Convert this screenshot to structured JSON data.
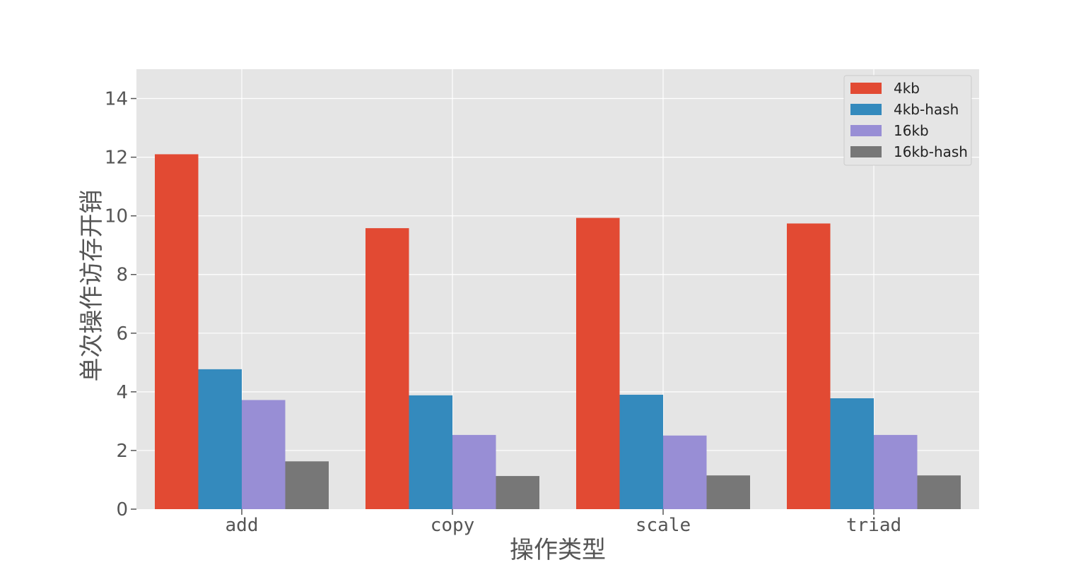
{
  "chart_data": {
    "type": "bar",
    "xlabel": "操作类型",
    "ylabel": "单次操作访存开销",
    "categories": [
      "add",
      "copy",
      "scale",
      "triad"
    ],
    "series": [
      {
        "name": "4kb",
        "values": [
          12.1,
          9.58,
          9.93,
          9.74
        ],
        "color": "#E24A33"
      },
      {
        "name": "4kb-hash",
        "values": [
          4.77,
          3.88,
          3.9,
          3.78
        ],
        "color": "#348ABD"
      },
      {
        "name": "16kb",
        "values": [
          3.72,
          2.53,
          2.51,
          2.53
        ],
        "color": "#988ED5"
      },
      {
        "name": "16kb-hash",
        "values": [
          1.63,
          1.13,
          1.15,
          1.15
        ],
        "color": "#777777"
      }
    ],
    "ylim": [
      0,
      15
    ],
    "yticks": [
      0,
      2,
      4,
      6,
      8,
      10,
      12,
      14
    ],
    "grid": true,
    "legend_position": "top-right",
    "background_color": "#E5E5E5"
  }
}
